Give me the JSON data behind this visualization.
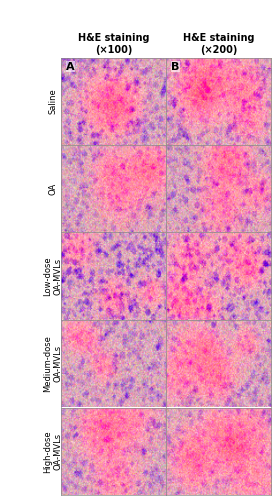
{
  "col_headers": [
    "H&E staining\n(×100)",
    "H&E staining\n(×200)"
  ],
  "row_labels": [
    "Saline",
    "OA",
    "Low-dose\nOA-MVLs",
    "Medium-dose\nOA-MVLs",
    "High-dose\nOA-MVLs"
  ],
  "panel_labels": [
    "A",
    "B"
  ],
  "n_rows": 5,
  "n_cols": 2,
  "bg_color": "#ffffff",
  "header_fontsize": 7,
  "rowlabel_fontsize": 6,
  "panel_label_fontsize": 8
}
